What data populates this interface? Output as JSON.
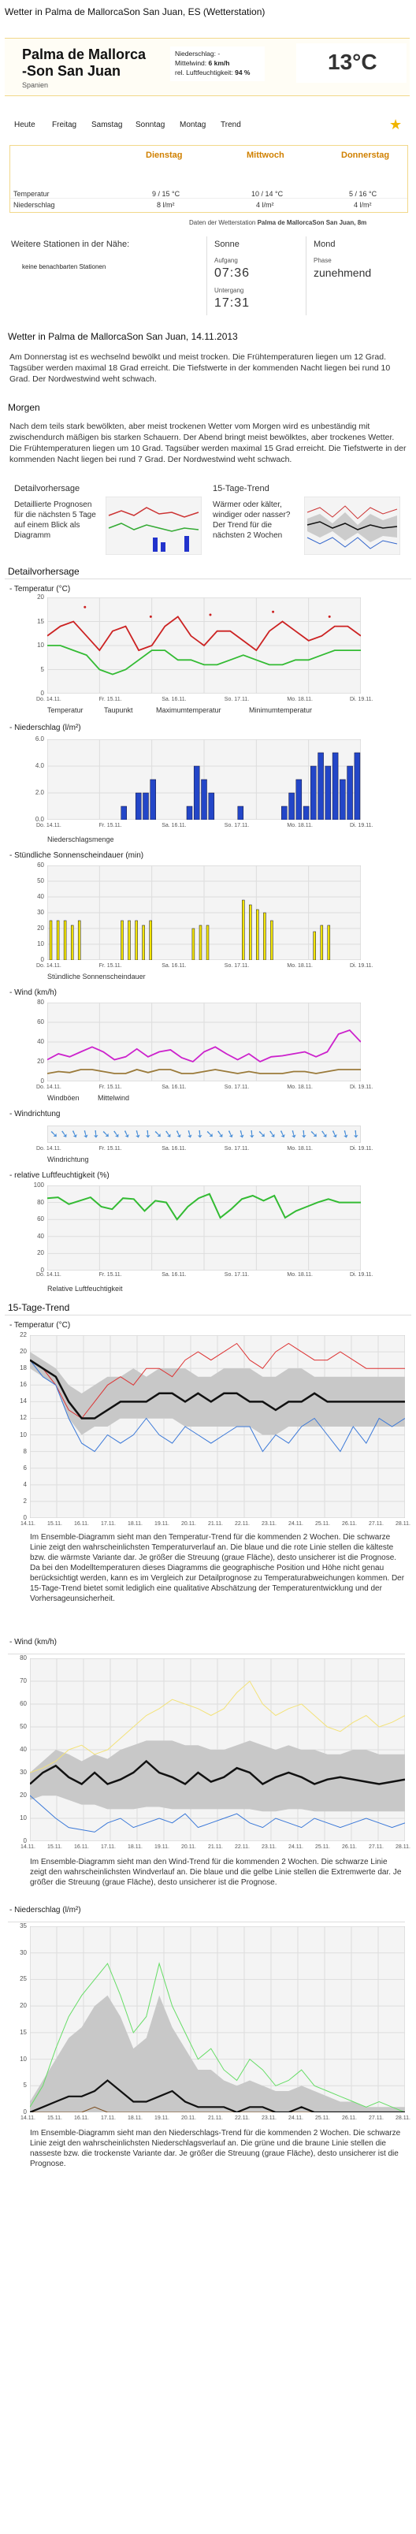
{
  "page": {
    "title": "Wetter in Palma de MallorcaSon San Juan, ES (Wetterstation)"
  },
  "current": {
    "city_line1": "Palma de Mallorca",
    "city_line2": "-Son San Juan",
    "country": "Spanien",
    "precip_label": "Niederschlag: -",
    "wind_label": "Mittelwind:",
    "wind_value": "6 km/h",
    "humidity_label": "rel. Luftfeuchtigkeit:",
    "humidity_value": "94 %",
    "temp": "13°C"
  },
  "nav": {
    "items": [
      "Heute",
      "Freitag",
      "Samstag",
      "Sonntag",
      "Montag",
      "Trend"
    ]
  },
  "forecast_table": {
    "days": [
      "Dienstag",
      "Mittwoch",
      "Donnerstag"
    ],
    "rows": [
      {
        "label": "Temperatur",
        "values": [
          "9 / 15 °C",
          "10 / 14 °C",
          "5 / 16 °C"
        ]
      },
      {
        "label": "Niederschlag",
        "values": [
          "8 l/m²",
          "4 l/m²",
          "4 l/m²"
        ]
      }
    ]
  },
  "station_note": {
    "prefix": "Daten der Wetterstation ",
    "station": "Palma de MallorcaSon San Juan, 8m"
  },
  "stations": {
    "title": "Weitere Stationen in der Nähe:",
    "empty": "keine benachbarten Stationen"
  },
  "sun": {
    "title": "Sonne",
    "sunrise_label": "Aufgang",
    "sunrise": "07:36",
    "sunset_label": "Untergang",
    "sunset": "17:31"
  },
  "moon": {
    "title": "Mond",
    "phase_label": "Phase",
    "phase": "zunehmend"
  },
  "report": {
    "heading": "Wetter in Palma de MallorcaSon San Juan, 14.11.2013",
    "text": "Am Donnerstag ist es wechselnd bewölkt und meist trocken. Die Frühtemperaturen liegen um 12 Grad. Tagsüber werden maximal 18 Grad erreicht. Die Tiefstwerte in der kommenden Nacht liegen bei rund 10 Grad. Der Nordwestwind weht schwach."
  },
  "morgen": {
    "heading": "Morgen",
    "text": "Nach dem teils stark bewölkten, aber meist trockenen Wetter vom Morgen wird es unbeständig mit zwischendurch mäßigen bis starken Schauern. Der Abend bringt meist bewölktes, aber trockenes Wetter. Die Frühtemperaturen liegen um 10 Grad. Tagsüber werden maximal 15 Grad erreicht. Die Tiefstwerte in der kommenden Nacht liegen bei rund 7 Grad. Der Nordwestwind weht schwach."
  },
  "promo": {
    "detail_title": "Detailvorhersage",
    "detail_text": "Detaillierte Prognosen für die nächsten 5 Tage auf einem Blick als Diagramm",
    "trend_title": "15-Tage-Trend",
    "trend_text": "Wärmer oder kälter, windiger oder nasser? Der Trend für die nächsten 2 Wochen"
  },
  "detail": {
    "heading": "Detailvorhersage",
    "xlabels": [
      "Do. 14.11.",
      "Fr. 15.11.",
      "Sa. 16.11.",
      "So. 17.11.",
      "Mo. 18.11.",
      "Di. 19.11."
    ],
    "temp": {
      "title": "- Temperatur (°C)",
      "yticks": [
        "20",
        "15",
        "10",
        "5",
        "0"
      ],
      "legend": [
        "Temperatur",
        "Taupunkt",
        "Maximumtemperatur",
        "Minimumtemperatur"
      ]
    },
    "precip": {
      "title": "- Niederschlag (l/m²)",
      "yticks": [
        "6.0",
        "4.0",
        "2.0",
        "0.0"
      ],
      "legend": "Niederschlagsmenge"
    },
    "sun": {
      "title": "- Stündliche Sonnenscheindauer (min)",
      "yticks": [
        "60",
        "50",
        "40",
        "30",
        "20",
        "10",
        "0"
      ],
      "legend": "Stündliche Sonnenscheindauer"
    },
    "wind": {
      "title": "- Wind (km/h)",
      "yticks": [
        "80",
        "60",
        "40",
        "20",
        "0"
      ],
      "legend": [
        "Windböen",
        "Mittelwind"
      ]
    },
    "winddir": {
      "title": "- Windrichtung",
      "legend": "Windrichtung"
    },
    "hum": {
      "title": "- relative Luftfeuchtigkeit (%)",
      "yticks": [
        "100",
        "80",
        "60",
        "40",
        "20",
        "0"
      ],
      "legend": "Relative Luftfeuchtigkeit"
    }
  },
  "trend": {
    "heading": "15-Tage-Trend",
    "xlabels": [
      "14.11.",
      "15.11.",
      "16.11.",
      "17.11.",
      "18.11.",
      "19.11.",
      "20.11.",
      "21.11.",
      "22.11.",
      "23.11.",
      "24.11.",
      "25.11.",
      "26.11.",
      "27.11.",
      "28.11."
    ],
    "temp": {
      "title": "- Temperatur (°C)",
      "yticks": [
        "22",
        "20",
        "18",
        "16",
        "14",
        "12",
        "10",
        "8",
        "6",
        "4",
        "2",
        "0"
      ],
      "text": "Im Ensemble-Diagramm sieht man den Temperatur-Trend für die kommenden 2 Wochen. Die schwarze Linie zeigt den wahrscheinlichsten Temperaturverlauf an. Die blaue und die rote Linie stellen die kälteste bzw. die wärmste Variante dar. Je größer die Streuung (graue Fläche), desto unsicherer ist die Prognose. Da bei den Modelltemperaturen dieses Diagramms die geographische Position und Höhe nicht genau berücksichtigt werden, kann es im Vergleich zur Detailprognose zu Temperaturabweichungen kommen. Der 15-Tage-Trend bietet somit lediglich eine qualitative Abschätzung der Temperaturentwicklung und der Vorhersageunsicherheit."
    },
    "wind": {
      "title": "- Wind (km/h)",
      "yticks": [
        "80",
        "70",
        "60",
        "50",
        "40",
        "30",
        "20",
        "10",
        "0"
      ],
      "text": "Im Ensemble-Diagramm sieht man den Wind-Trend für die kommenden 2 Wochen. Die schwarze Linie zeigt den wahrscheinlichsten Windverlauf an. Die blaue und die gelbe Linie stellen die Extremwerte dar. Je größer die Streuung (graue Fläche), desto unsicherer ist die Prognose."
    },
    "precip": {
      "title": "- Niederschlag (l/m²)",
      "yticks": [
        "35",
        "30",
        "25",
        "20",
        "15",
        "10",
        "5",
        "0"
      ],
      "text": "Im Ensemble-Diagramm sieht man den Niederschlags-Trend für die kommenden 2 Wochen. Die schwarze Linie zeigt den wahrscheinlichsten Niederschlagsverlauf an. Die grüne und die braune Linie stellen die nasseste bzw. die trockenste Variante dar. Je größer die Streuung (graue Fläche), desto unsicherer ist die Prognose."
    }
  },
  "chart_data": [
    {
      "type": "line",
      "title": "Temperatur (°C)",
      "series": [
        {
          "name": "Temperatur",
          "values": [
            12,
            14,
            15,
            12,
            9,
            13,
            14,
            9,
            10,
            14,
            16,
            12,
            10,
            13,
            13,
            11,
            9,
            13,
            15,
            13,
            11,
            12,
            14,
            14,
            12
          ]
        },
        {
          "name": "Taupunkt",
          "values": [
            10,
            10,
            9,
            8,
            5,
            4,
            5,
            7,
            9,
            9,
            7,
            7,
            6,
            6,
            7,
            8,
            7,
            6,
            6,
            7,
            7,
            8,
            9,
            9,
            9
          ]
        }
      ],
      "ylim": [
        0,
        20
      ]
    },
    {
      "type": "bar",
      "title": "Niederschlag (l/m²)",
      "values": [
        0,
        0,
        0,
        0,
        0,
        0,
        0,
        0,
        0,
        0,
        1,
        0,
        2,
        2,
        3,
        0,
        0,
        0,
        0,
        1,
        4,
        3,
        2,
        0,
        0,
        0,
        1,
        0,
        0,
        0,
        0,
        0,
        1,
        2,
        3,
        1,
        4,
        5,
        4,
        5,
        3,
        4,
        5
      ],
      "ylim": [
        0,
        6
      ]
    },
    {
      "type": "bar",
      "title": "Stündliche Sonnenscheindauer (min)",
      "values": [
        25,
        25,
        25,
        22,
        25,
        0,
        0,
        0,
        0,
        0,
        25,
        25,
        25,
        22,
        25,
        0,
        0,
        0,
        0,
        0,
        20,
        22,
        22,
        0,
        0,
        0,
        0,
        38,
        35,
        32,
        30,
        25,
        0,
        0,
        0,
        0,
        0,
        18,
        22,
        22,
        0,
        0,
        0,
        0
      ],
      "ylim": [
        0,
        60
      ]
    },
    {
      "type": "line",
      "title": "Wind (km/h)",
      "series": [
        {
          "name": "Windböen",
          "values": [
            22,
            28,
            25,
            30,
            35,
            30,
            22,
            25,
            33,
            25,
            30,
            32,
            24,
            20,
            30,
            35,
            28,
            22,
            28,
            20,
            25,
            26,
            28,
            30,
            25,
            30,
            48,
            52,
            40
          ]
        },
        {
          "name": "Mittelwind",
          "values": [
            8,
            10,
            9,
            12,
            12,
            10,
            8,
            8,
            12,
            9,
            12,
            12,
            8,
            8,
            10,
            12,
            10,
            8,
            10,
            8,
            8,
            8,
            10,
            10,
            8,
            10,
            12,
            12,
            12
          ]
        }
      ],
      "ylim": [
        0,
        80
      ]
    },
    {
      "type": "line",
      "title": "relative Luftfeuchtigkeit (%)",
      "series": [
        {
          "name": "Relative Luftfeuchtigkeit",
          "values": [
            85,
            86,
            78,
            82,
            86,
            75,
            72,
            85,
            84,
            70,
            82,
            80,
            60,
            75,
            85,
            90,
            62,
            72,
            84,
            88,
            82,
            88,
            62,
            70,
            75,
            80,
            84,
            80,
            80,
            80
          ]
        }
      ],
      "ylim": [
        0,
        100
      ]
    }
  ]
}
